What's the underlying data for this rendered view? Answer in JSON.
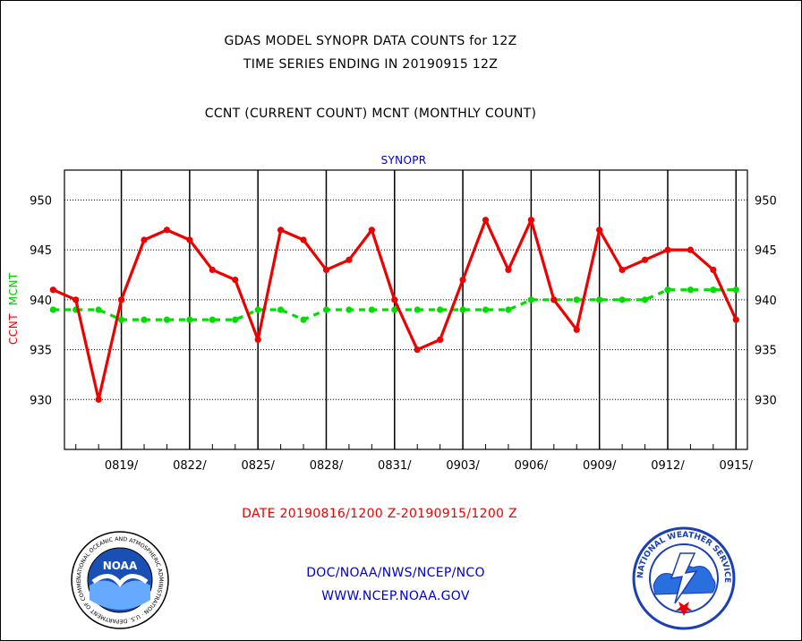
{
  "header": {
    "title_line1": "GDAS MODEL SYNOPR DATA COUNTS for 12Z",
    "title_line2": "TIME SERIES ENDING IN 20190915 12Z",
    "subtitle": "CCNT (CURRENT COUNT) MCNT (MONTHLY COUNT)",
    "panel_label": "SYNOPR"
  },
  "footer": {
    "date_range": "DATE 20190816/1200 Z-20190915/1200 Z",
    "org": "DOC/NOAA/NWS/NCEP/NCO",
    "url": "WWW.NCEP.NOAA.GOV"
  },
  "logos": {
    "noaa_text": "NOAA",
    "noaa_ring": "NATIONAL OCEANIC AND ATMOSPHERIC ADMINISTRATION · U.S. DEPARTMENT OF COMMERCE",
    "nws_ring": "NATIONAL WEATHER SERVICE"
  },
  "colors": {
    "ccnt": "#ee0000",
    "mcnt": "#00dd00",
    "text_blue": "#0000cc"
  },
  "chart_data": {
    "type": "line",
    "title": "GDAS MODEL SYNOPR DATA COUNTS for 12Z",
    "ylabel_parts": [
      "CCNT",
      "MCNT"
    ],
    "ylim": [
      925,
      953
    ],
    "xlim_days": [
      0.5,
      30.5
    ],
    "yticks": [
      930,
      935,
      940,
      945,
      950
    ],
    "x_tick_labels": [
      "0819/",
      "0822/",
      "0825/",
      "0828/",
      "0831/",
      "0903/",
      "0906/",
      "0909/",
      "0912/",
      "0915/"
    ],
    "x_tick_days": [
      3,
      6,
      9,
      12,
      15,
      18,
      21,
      24,
      27,
      30
    ],
    "grid": true,
    "series": [
      {
        "name": "CCNT",
        "style": "solid",
        "x_dates": [
          "0816",
          "0817",
          "0818",
          "0819",
          "0820",
          "0821",
          "0822",
          "0823",
          "0824",
          "0825",
          "0826",
          "0827",
          "0828",
          "0829",
          "0830",
          "0831",
          "0901",
          "0902",
          "0903",
          "0904",
          "0905",
          "0906",
          "0907",
          "0908",
          "0909",
          "0910",
          "0911",
          "0912",
          "0913",
          "0914",
          "0915"
        ],
        "values": [
          941,
          940,
          930,
          940,
          946,
          947,
          946,
          943,
          942,
          936,
          947,
          946,
          943,
          944,
          947,
          940,
          935,
          936,
          942,
          948,
          943,
          948,
          940,
          937,
          947,
          943,
          944,
          945,
          945,
          943,
          938
        ]
      },
      {
        "name": "MCNT",
        "style": "dashed",
        "x_dates": [
          "0816",
          "0817",
          "0818",
          "0819",
          "0820",
          "0821",
          "0822",
          "0823",
          "0824",
          "0825",
          "0826",
          "0827",
          "0828",
          "0829",
          "0830",
          "0831",
          "0901",
          "0902",
          "0903",
          "0904",
          "0905",
          "0906",
          "0907",
          "0908",
          "0909",
          "0910",
          "0911",
          "0912",
          "0913",
          "0914",
          "0915"
        ],
        "values": [
          939,
          939,
          939,
          938,
          938,
          938,
          938,
          938,
          938,
          939,
          939,
          938,
          939,
          939,
          939,
          939,
          939,
          939,
          939,
          939,
          939,
          940,
          940,
          940,
          940,
          940,
          940,
          941,
          941,
          941,
          941
        ]
      }
    ]
  }
}
